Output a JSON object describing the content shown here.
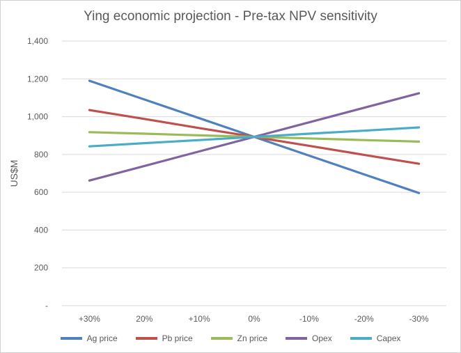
{
  "chart_data": {
    "type": "line",
    "title": "Ying economic projection - Pre-tax NPV sensitivity",
    "xlabel": "",
    "ylabel": "US$M",
    "categories": [
      "+30%",
      "20%",
      "+10%",
      "0%",
      "-10%",
      "-20%",
      "-30%"
    ],
    "ylim": [
      0,
      1400
    ],
    "yticks": [
      {
        "value": 0,
        "label": "-"
      },
      {
        "value": 200,
        "label": "200"
      },
      {
        "value": 400,
        "label": "400"
      },
      {
        "value": 600,
        "label": "600"
      },
      {
        "value": 800,
        "label": "800"
      },
      {
        "value": 1000,
        "label": "1,000"
      },
      {
        "value": 1200,
        "label": "1,200"
      },
      {
        "value": 1400,
        "label": "1,400"
      }
    ],
    "grid": true,
    "legend_position": "bottom",
    "series": [
      {
        "name": "Ag price",
        "color": "#4f81bd",
        "values": [
          1190,
          1091,
          992,
          893,
          794,
          695,
          596
        ]
      },
      {
        "name": "Pb price",
        "color": "#c0504d",
        "values": [
          1035,
          988,
          940,
          893,
          846,
          798,
          751
        ]
      },
      {
        "name": "Zn price",
        "color": "#9bbb59",
        "values": [
          918,
          910,
          901,
          893,
          885,
          876,
          868
        ]
      },
      {
        "name": "Opex",
        "color": "#8064a2",
        "values": [
          662,
          739,
          816,
          893,
          970,
          1047,
          1124
        ]
      },
      {
        "name": "Capex",
        "color": "#4bacc6",
        "values": [
          843,
          860,
          876,
          893,
          910,
          926,
          943
        ]
      }
    ]
  }
}
